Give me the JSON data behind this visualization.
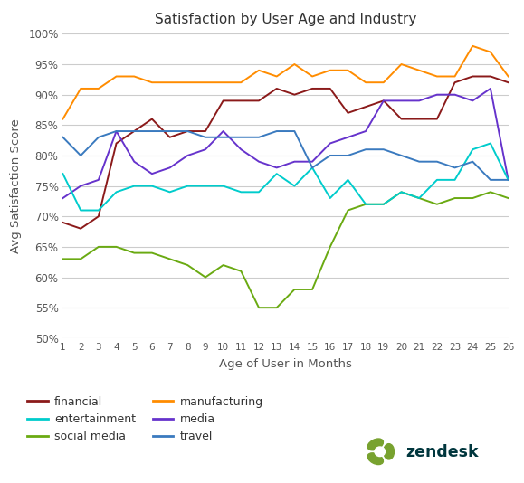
{
  "title": "Satisfaction by User Age and Industry",
  "xlabel": "Age of User in Months",
  "ylabel": "Avg Satisfaction Score",
  "x": [
    1,
    2,
    3,
    4,
    5,
    6,
    7,
    8,
    9,
    10,
    11,
    12,
    13,
    14,
    15,
    16,
    17,
    18,
    19,
    20,
    21,
    22,
    23,
    24,
    25,
    26
  ],
  "financial": [
    69,
    68,
    70,
    82,
    84,
    86,
    83,
    84,
    84,
    89,
    89,
    89,
    91,
    90,
    91,
    91,
    87,
    88,
    89,
    86,
    86,
    86,
    92,
    93,
    93,
    92
  ],
  "social_media": [
    63,
    63,
    65,
    65,
    64,
    64,
    63,
    62,
    60,
    62,
    61,
    55,
    55,
    58,
    58,
    65,
    71,
    72,
    72,
    74,
    73,
    72,
    73,
    73,
    74,
    73
  ],
  "media": [
    73,
    75,
    76,
    84,
    79,
    77,
    78,
    80,
    81,
    84,
    81,
    79,
    78,
    79,
    79,
    82,
    83,
    84,
    89,
    89,
    89,
    90,
    90,
    89,
    91,
    76
  ],
  "entertainment": [
    77,
    71,
    71,
    74,
    75,
    75,
    74,
    75,
    75,
    75,
    74,
    74,
    77,
    75,
    78,
    73,
    76,
    72,
    72,
    74,
    73,
    76,
    76,
    81,
    82,
    76
  ],
  "manufacturing": [
    86,
    91,
    91,
    93,
    93,
    92,
    92,
    92,
    92,
    92,
    92,
    94,
    93,
    95,
    93,
    94,
    94,
    92,
    92,
    95,
    94,
    93,
    93,
    98,
    97,
    93
  ],
  "travel": [
    83,
    80,
    83,
    84,
    84,
    84,
    84,
    84,
    83,
    83,
    83,
    83,
    84,
    84,
    78,
    80,
    80,
    81,
    81,
    80,
    79,
    79,
    78,
    79,
    76,
    76
  ],
  "colors": {
    "financial": "#8B1A1A",
    "social_media": "#6aaa12",
    "media": "#6633cc",
    "entertainment": "#00cccc",
    "manufacturing": "#ff8c00",
    "travel": "#3a7abf"
  },
  "ylim_pct": [
    50,
    100
  ],
  "yticks_pct": [
    50,
    55,
    60,
    65,
    70,
    75,
    80,
    85,
    90,
    95,
    100
  ],
  "background_color": "#ffffff",
  "grid_color": "#cccccc",
  "legend_order": [
    "financial",
    "entertainment",
    "social_media",
    "manufacturing",
    "media",
    "travel"
  ],
  "legend_labels": {
    "financial": "financial",
    "social_media": "social media",
    "media": "media",
    "entertainment": "entertainment",
    "manufacturing": "manufacturing",
    "travel": "travel"
  },
  "zendesk_color": "#78a22f",
  "zendesk_text_color": "#00363d",
  "title_color": "#333333",
  "axis_label_color": "#555555",
  "tick_color": "#555555"
}
